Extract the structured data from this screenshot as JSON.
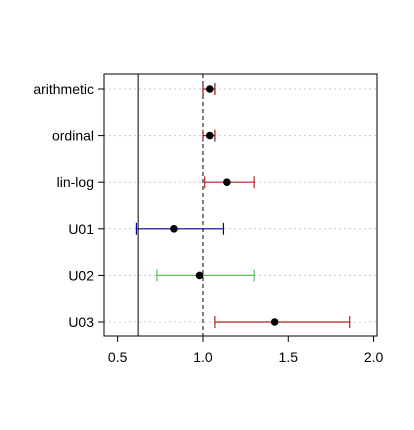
{
  "chart_data": {
    "type": "forest",
    "title": "",
    "xlabel": "",
    "ylabel": "",
    "xlim": [
      0.42,
      2.02
    ],
    "x_ticks": [
      0.5,
      1.0,
      1.5,
      2.0
    ],
    "x_tick_labels": [
      "0.5",
      "1.0",
      "1.5",
      "2.0"
    ],
    "grid": "horizontal dotted",
    "reference_lines": [
      {
        "x": 1.0,
        "style": "dashed"
      },
      {
        "x": 0.62,
        "style": "solid"
      }
    ],
    "rows": [
      {
        "label": "arithmetic",
        "estimate": 1.04,
        "lower": 1.0,
        "upper": 1.07,
        "color": "#8b1a1a"
      },
      {
        "label": "ordinal",
        "estimate": 1.04,
        "lower": 1.0,
        "upper": 1.07,
        "color": "#8b1a1a"
      },
      {
        "label": "lin-log",
        "estimate": 1.14,
        "lower": 1.01,
        "upper": 1.3,
        "color": "#b22222"
      },
      {
        "label": "U01",
        "estimate": 0.83,
        "lower": 0.61,
        "upper": 1.12,
        "color": "#00008b"
      },
      {
        "label": "U02",
        "estimate": 0.98,
        "lower": 0.73,
        "upper": 1.3,
        "color": "#5fbf5f"
      },
      {
        "label": "U03",
        "estimate": 1.42,
        "lower": 1.07,
        "upper": 1.86,
        "color": "#b22222"
      }
    ]
  }
}
